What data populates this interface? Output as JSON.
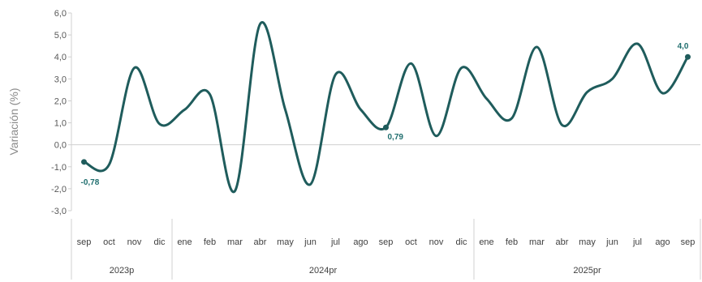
{
  "chart_data": {
    "type": "line",
    "title": "",
    "ylabel": "Variación (%)",
    "xlabel": "",
    "ylim": [
      -3.0,
      6.0
    ],
    "ytick_step": 1.0,
    "ytick_labels": [
      "-3,0",
      "-2,0",
      "-1,0",
      "0,0",
      "1,0",
      "2,0",
      "3,0",
      "4,0",
      "5,0",
      "6,0"
    ],
    "categories": [
      "sep",
      "oct",
      "nov",
      "dic",
      "ene",
      "feb",
      "mar",
      "abr",
      "may",
      "jun",
      "jul",
      "ago",
      "sep",
      "oct",
      "nov",
      "dic",
      "ene",
      "feb",
      "mar",
      "abr",
      "may",
      "jun",
      "jul",
      "ago",
      "sep"
    ],
    "groups": [
      {
        "label": "2023p",
        "count": 4
      },
      {
        "label": "2024pr",
        "count": 12
      },
      {
        "label": "2025pr",
        "count": 9
      }
    ],
    "series": [
      {
        "values": [
          -0.78,
          -0.9,
          3.5,
          0.95,
          1.6,
          2.3,
          -2.1,
          5.5,
          1.6,
          -1.8,
          3.2,
          1.6,
          0.79,
          3.7,
          0.4,
          3.5,
          2.1,
          1.2,
          4.45,
          0.9,
          2.4,
          3.0,
          4.6,
          2.35,
          4.0
        ],
        "color": "#1f5c5c"
      }
    ],
    "data_labels": [
      {
        "index": 0,
        "text": "-0,78"
      },
      {
        "index": 12,
        "text": "0,79"
      },
      {
        "index": 24,
        "text": "4,0"
      }
    ],
    "label_color": "#1f6e6e",
    "grid": false
  }
}
